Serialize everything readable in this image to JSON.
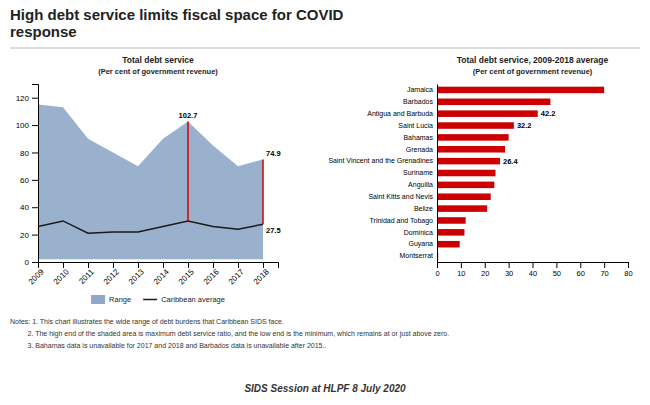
{
  "title": "High debt service limits fiscal space for COVID\nresponse",
  "notes": [
    "Notes: 1. This chart illustrates the wide range of debt burdens that Caribbean SIDS face.",
    "         2. The high end of the shaded area is maximum debt service ratio, and the low end is the minimum, which remains at or just above zero.",
    "         3. Bahamas data is unavailable for 2017 and 2018 and Barbados data is unavailable after 2015.."
  ],
  "footer": "SIDS Session at HLPF 8 July 2020",
  "chart_data": [
    {
      "type": "line",
      "title": "Total debt service",
      "subtitle": "(Per cent of government revenue)",
      "x": [
        2009,
        2010,
        2011,
        2012,
        2013,
        2014,
        2015,
        2016,
        2017,
        2018
      ],
      "series": [
        {
          "name": "Range",
          "type": "area",
          "color": "#8fa8c8",
          "upper": [
            115,
            113,
            90,
            80,
            70,
            90,
            102.7,
            85,
            70,
            74.9
          ],
          "lower": [
            2,
            2,
            2,
            2,
            2,
            2,
            2,
            2,
            2,
            2
          ]
        },
        {
          "name": "Caribbean average",
          "type": "line",
          "color": "#1a1a1a",
          "values": [
            26,
            30,
            21,
            22,
            22,
            26,
            30,
            26,
            24,
            27.5
          ]
        }
      ],
      "xlim": [
        2009,
        2018.6
      ],
      "xticks": [
        2009,
        2010,
        2011,
        2012,
        2013,
        2014,
        2015,
        2016,
        2017,
        2018
      ],
      "ylim": [
        0,
        130
      ],
      "yticks": [
        0,
        20,
        40,
        60,
        80,
        100,
        120
      ],
      "reference_lines": [
        {
          "x": 2015,
          "y_from": 30,
          "y_to": 102.7
        },
        {
          "x": 2018,
          "y_from": 27.5,
          "y_to": 74.9
        }
      ],
      "annotations": [
        {
          "x": 2015,
          "y": 102.7,
          "text": "102.7"
        },
        {
          "x": 2018,
          "y": 74.9,
          "text": "74.9"
        },
        {
          "x": 2018,
          "y": 27.5,
          "text": "27.5"
        }
      ],
      "grid": false,
      "legend": "bottom"
    },
    {
      "type": "bar",
      "orientation": "horizontal",
      "title": "Total debt service, 2009-2018 average",
      "subtitle": "(Per cent of government revenue)",
      "categories": [
        "Jamaica",
        "Barbados",
        "Antigua and Barbuda",
        "Saint Lucia",
        "Bahamas",
        "Grenada",
        "Saint Vincent and the Grenadines",
        "Suriname",
        "Anguilla",
        "Saint Kitts and Nevis",
        "Belize",
        "Trinidad and Tobago",
        "Dominica",
        "Guyana",
        "Montserrat"
      ],
      "values": [
        70.0,
        47.5,
        42.2,
        32.2,
        30.0,
        28.5,
        26.4,
        24.5,
        24.0,
        22.5,
        21.0,
        12.0,
        11.5,
        9.5,
        0.5
      ],
      "value_labels": [
        null,
        null,
        "42.2",
        "32.2",
        null,
        null,
        "26.4",
        null,
        null,
        null,
        null,
        null,
        null,
        null,
        null
      ],
      "color": "#cc0000",
      "xlim": [
        0,
        80
      ],
      "xticks": [
        0,
        10,
        20,
        30,
        40,
        50,
        60,
        70,
        80
      ],
      "grid": false
    }
  ]
}
